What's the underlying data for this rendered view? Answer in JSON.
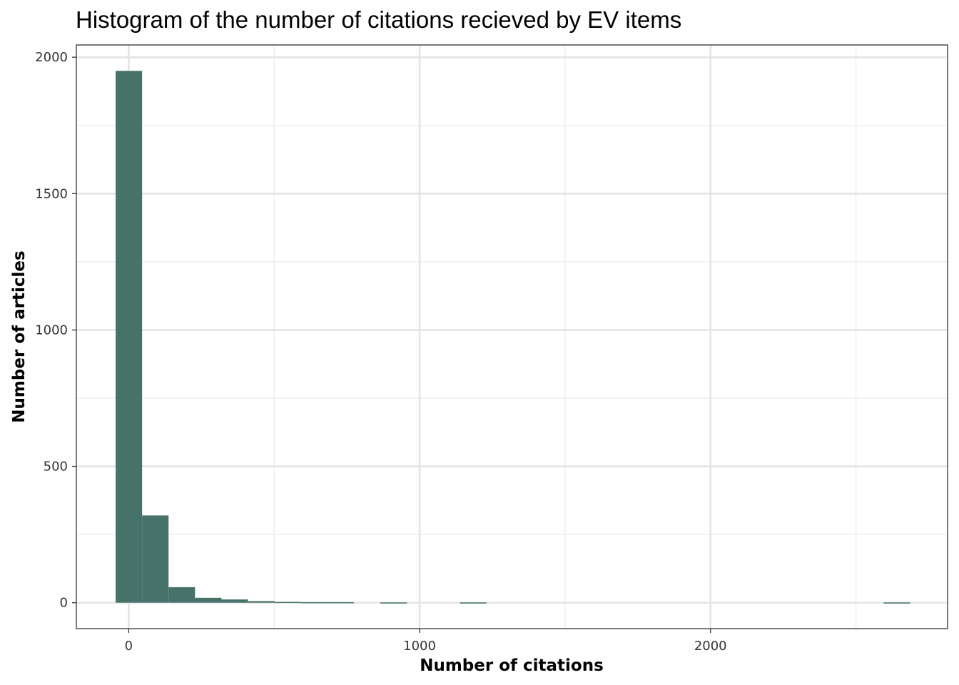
{
  "chart_data": {
    "type": "bar",
    "subtype": "histogram",
    "title": "Histogram of the number of citations recieved by EV items",
    "xlabel": "Number of citations",
    "ylabel": "Number of articles",
    "xlim": [
      -180,
      2815
    ],
    "ylim": [
      -95,
      2045
    ],
    "x_ticks": [
      0,
      1000,
      2000
    ],
    "x_tick_labels": [
      "0",
      "1000",
      "2000"
    ],
    "x_minor_ticks": [
      500,
      1500,
      2500
    ],
    "y_ticks": [
      0,
      500,
      1000,
      1500,
      2000
    ],
    "y_tick_labels": [
      "0",
      "500",
      "1000",
      "1500",
      "2000"
    ],
    "y_minor_ticks": [
      250,
      750,
      1250,
      1750
    ],
    "grid": true,
    "bar_color": "#47726A",
    "bins": [
      {
        "x0": -45,
        "x1": 46,
        "count": 1950
      },
      {
        "x0": 46,
        "x1": 137,
        "count": 320
      },
      {
        "x0": 137,
        "x1": 228,
        "count": 57
      },
      {
        "x0": 228,
        "x1": 319,
        "count": 18
      },
      {
        "x0": 319,
        "x1": 410,
        "count": 12
      },
      {
        "x0": 410,
        "x1": 501,
        "count": 6
      },
      {
        "x0": 501,
        "x1": 592,
        "count": 3
      },
      {
        "x0": 592,
        "x1": 683,
        "count": 2
      },
      {
        "x0": 683,
        "x1": 774,
        "count": 2
      },
      {
        "x0": 865,
        "x1": 956,
        "count": 1
      },
      {
        "x0": 1139,
        "x1": 1230,
        "count": 1
      },
      {
        "x0": 2595,
        "x1": 2686,
        "count": 1
      }
    ]
  }
}
